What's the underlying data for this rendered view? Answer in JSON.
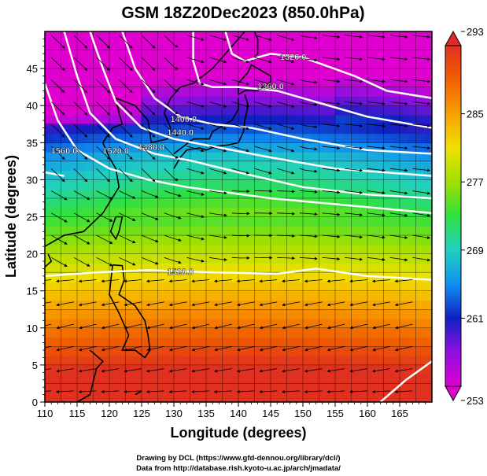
{
  "title": "GSM 18Z20Dec2023 (850.0hPa)",
  "xlabel": "Longitude (degrees)",
  "ylabel": "Latitude (degrees)",
  "credits": [
    "Drawing by DCL (https://www.gfd-dennou.org/library/dcl/)",
    "Data from http://database.rish.kyoto-u.ac.jp/arch/jmadata/"
  ],
  "chart_data": {
    "type": "heatmap",
    "x_range": [
      110,
      170
    ],
    "y_range": [
      0,
      50
    ],
    "x_ticks": [
      "110",
      "115",
      "120",
      "125",
      "130",
      "135",
      "140",
      "145",
      "150",
      "155",
      "160",
      "165"
    ],
    "y_ticks": [
      "0",
      "5",
      "10",
      "15",
      "20",
      "25",
      "30",
      "35",
      "40",
      "45"
    ],
    "colorbar": {
      "min": 253,
      "max": 293,
      "tick_labels": [
        "253",
        "261",
        "269",
        "277",
        "285",
        "293"
      ],
      "colors": [
        "#e000d0",
        "#9010e0",
        "#1020c0",
        "#1090f0",
        "#20d0c0",
        "#30e040",
        "#a0e000",
        "#f0e000",
        "#f8a000",
        "#f06000",
        "#e03020"
      ]
    },
    "contour_labels": [
      {
        "text": "1320.0",
        "lon": 148.5,
        "lat": 46.2
      },
      {
        "text": "1360.0",
        "lon": 145.0,
        "lat": 42.2
      },
      {
        "text": "1400.0",
        "lon": 131.5,
        "lat": 37.8
      },
      {
        "text": "1440.0",
        "lon": 131.0,
        "lat": 36.0
      },
      {
        "text": "1480.0",
        "lon": 126.5,
        "lat": 34.0
      },
      {
        "text": "1520.0",
        "lon": 121.0,
        "lat": 33.5
      },
      {
        "text": "1560.0",
        "lon": 113.0,
        "lat": 33.5
      },
      {
        "text": "1520.0",
        "lon": 131.0,
        "lat": 17.2
      }
    ]
  }
}
